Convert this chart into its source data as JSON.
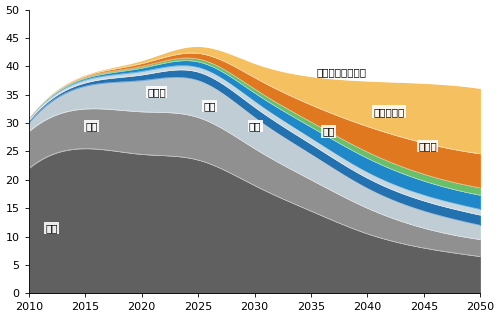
{
  "years": [
    2010,
    2015,
    2020,
    2025,
    2030,
    2035,
    2040,
    2045,
    2050
  ],
  "series": {
    "煤炭": [
      22.0,
      25.5,
      24.5,
      23.5,
      19.0,
      14.5,
      10.5,
      8.0,
      6.5
    ],
    "石油": [
      6.5,
      7.0,
      7.5,
      7.5,
      6.5,
      5.5,
      4.5,
      3.5,
      3.0
    ],
    "天然气": [
      1.5,
      4.0,
      5.5,
      6.5,
      5.5,
      4.5,
      3.5,
      3.0,
      2.5
    ],
    "核电": [
      0.4,
      0.6,
      1.0,
      1.5,
      1.8,
      1.8,
      1.8,
      1.8,
      1.8
    ],
    "水电": [
      0.3,
      0.5,
      0.6,
      0.8,
      1.0,
      1.0,
      1.0,
      1.0,
      1.0
    ],
    "风电": [
      0.1,
      0.3,
      0.6,
      1.0,
      1.5,
      2.0,
      2.5,
      2.5,
      2.5
    ],
    "生物质": [
      0.1,
      0.2,
      0.3,
      0.5,
      0.7,
      0.9,
      1.1,
      1.2,
      1.3
    ],
    "太阳能发电": [
      0.05,
      0.2,
      0.5,
      1.0,
      2.0,
      3.0,
      4.5,
      5.5,
      6.0
    ],
    "太阳能和地热供热": [
      0.05,
      0.2,
      0.5,
      1.2,
      2.5,
      5.0,
      8.0,
      10.5,
      11.5
    ]
  },
  "colors": {
    "煤炭": "#606060",
    "石油": "#909090",
    "天然气": "#c0cdd4",
    "核电": "#2471b0",
    "水电": "#c8d8e0",
    "风电": "#1e88c8",
    "生物质": "#6abf6a",
    "太阳能发电": "#e07820",
    "太阳能和地热供热": "#f5c060"
  },
  "label_positions": [
    [
      "煤炭",
      2011.5,
      11.5
    ],
    [
      "石油",
      2015.0,
      29.5
    ],
    [
      "天然气",
      2020.5,
      35.5
    ],
    [
      "核电",
      2025.5,
      33.0
    ],
    [
      "水电",
      2029.5,
      29.5
    ],
    [
      "风电",
      2036.0,
      28.5
    ],
    [
      "生物质",
      2044.5,
      26.0
    ],
    [
      "太阳能发电",
      2040.5,
      32.0
    ],
    [
      "太阳能和地热供热",
      2035.5,
      39.0
    ]
  ],
  "ylim": [
    0,
    50
  ],
  "yticks": [
    0,
    5,
    10,
    15,
    20,
    25,
    30,
    35,
    40,
    45,
    50
  ],
  "xticks": [
    2010,
    2015,
    2020,
    2025,
    2030,
    2035,
    2040,
    2045,
    2050
  ],
  "background_color": "#ffffff",
  "font_size": 7.5
}
